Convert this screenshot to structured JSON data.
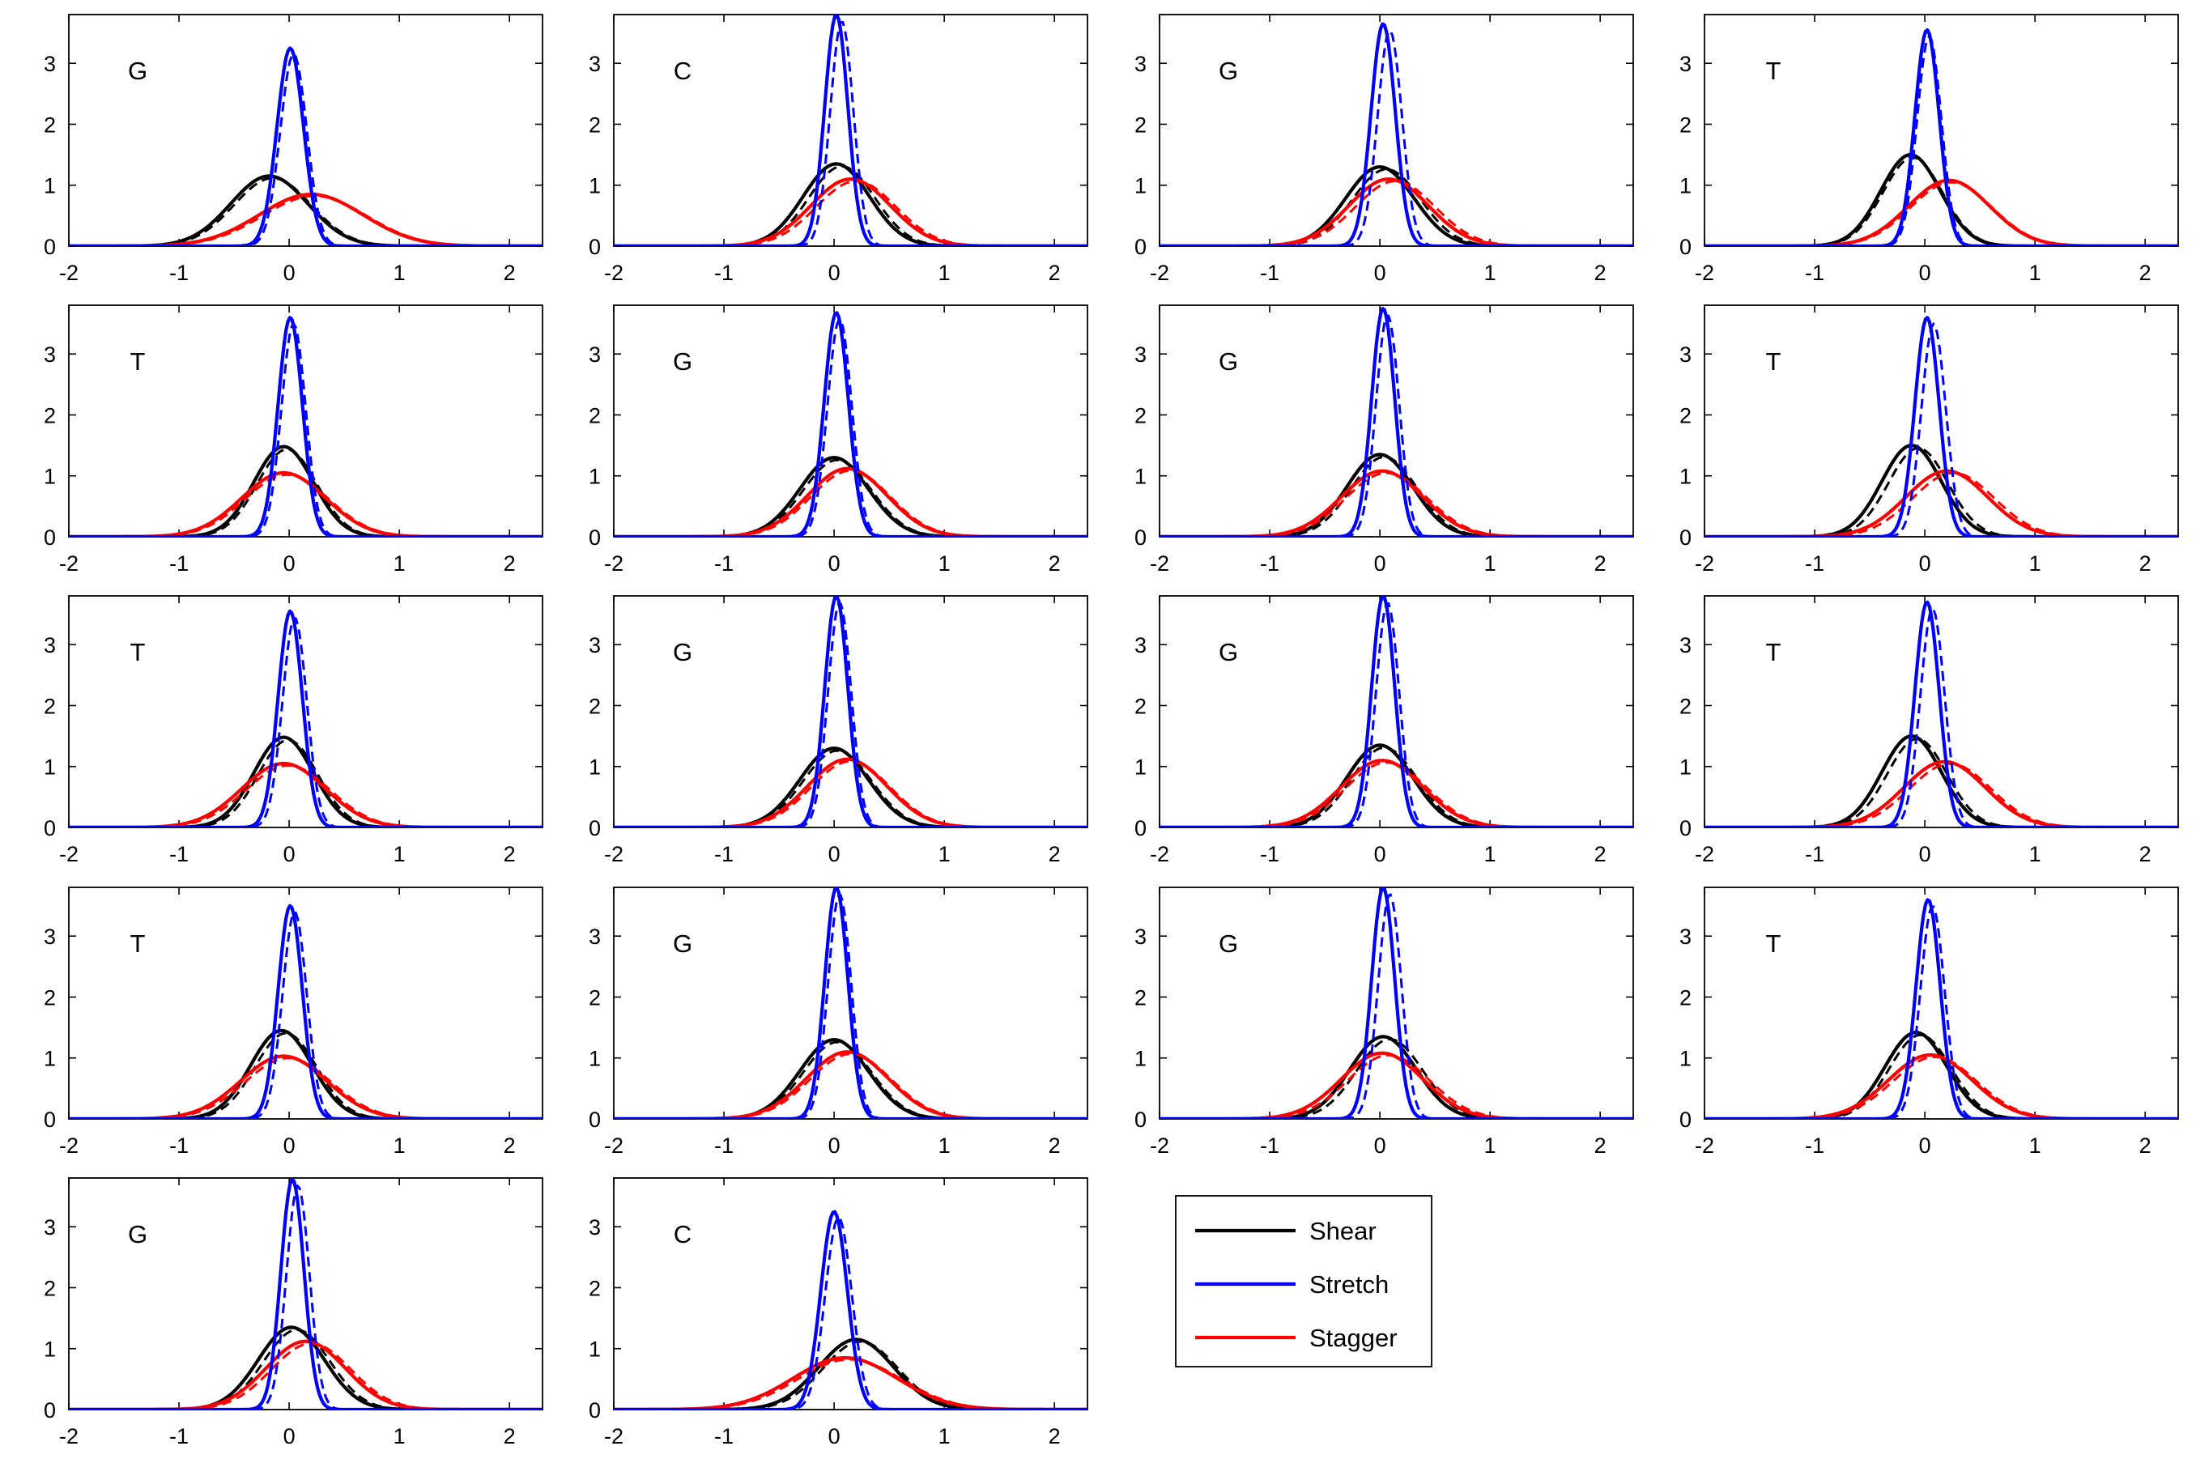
{
  "chart_data": {
    "type": "line",
    "grid": false,
    "xlim": [
      -2,
      2.3
    ],
    "ylim": [
      0,
      3.8
    ],
    "xticks": [
      "-2",
      "-1",
      "0",
      "1",
      "2"
    ],
    "yticks": [
      "0",
      "1",
      "2",
      "3"
    ],
    "series_colors": {
      "Shear": "#000000",
      "Stretch": "#0000ff",
      "Stagger": "#ff0000"
    },
    "legend": {
      "placement": "bottom-row, right of last panel",
      "entries": [
        {
          "name": "Shear",
          "color": "#000000"
        },
        {
          "name": "Stretch",
          "color": "#0000ff"
        },
        {
          "name": "Stagger",
          "color": "#ff0000"
        }
      ]
    },
    "panels": [
      {
        "base": "G",
        "shear": {
          "mean": -0.18,
          "peak": 1.15,
          "sd": 0.35
        },
        "stretch": {
          "mean": 0.01,
          "peak": 3.25,
          "sd": 0.12
        },
        "stagger": {
          "mean": 0.2,
          "peak": 0.85,
          "sd": 0.47
        },
        "alt_shift": 0.03
      },
      {
        "base": "C",
        "shear": {
          "mean": 0.02,
          "peak": 1.35,
          "sd": 0.3
        },
        "stretch": {
          "mean": 0.02,
          "peak": 3.8,
          "sd": 0.105
        },
        "stagger": {
          "mean": 0.15,
          "peak": 1.1,
          "sd": 0.36
        },
        "alt_shift": 0.05
      },
      {
        "base": "G",
        "shear": {
          "mean": 0.0,
          "peak": 1.3,
          "sd": 0.31
        },
        "stretch": {
          "mean": 0.03,
          "peak": 3.65,
          "sd": 0.11
        },
        "stagger": {
          "mean": 0.08,
          "peak": 1.1,
          "sd": 0.36
        },
        "alt_shift": 0.06
      },
      {
        "base": "T",
        "shear": {
          "mean": -0.13,
          "peak": 1.5,
          "sd": 0.27
        },
        "stretch": {
          "mean": 0.02,
          "peak": 3.55,
          "sd": 0.11
        },
        "stagger": {
          "mean": 0.22,
          "peak": 1.08,
          "sd": 0.37
        },
        "alt_shift": 0.02
      },
      {
        "base": "T",
        "shear": {
          "mean": -0.05,
          "peak": 1.48,
          "sd": 0.27
        },
        "stretch": {
          "mean": 0.01,
          "peak": 3.6,
          "sd": 0.11
        },
        "stagger": {
          "mean": -0.05,
          "peak": 1.05,
          "sd": 0.38
        },
        "alt_shift": 0.03
      },
      {
        "base": "G",
        "shear": {
          "mean": 0.0,
          "peak": 1.3,
          "sd": 0.31
        },
        "stretch": {
          "mean": 0.02,
          "peak": 3.68,
          "sd": 0.11
        },
        "stagger": {
          "mean": 0.12,
          "peak": 1.12,
          "sd": 0.36
        },
        "alt_shift": 0.03
      },
      {
        "base": "G",
        "shear": {
          "mean": 0.0,
          "peak": 1.35,
          "sd": 0.3
        },
        "stretch": {
          "mean": 0.03,
          "peak": 3.75,
          "sd": 0.105
        },
        "stagger": {
          "mean": 0.02,
          "peak": 1.08,
          "sd": 0.37
        },
        "alt_shift": 0.04
      },
      {
        "base": "T",
        "shear": {
          "mean": -0.12,
          "peak": 1.5,
          "sd": 0.27
        },
        "stretch": {
          "mean": 0.02,
          "peak": 3.6,
          "sd": 0.11
        },
        "stagger": {
          "mean": 0.2,
          "peak": 1.08,
          "sd": 0.37
        },
        "alt_shift": 0.06
      },
      {
        "base": "T",
        "shear": {
          "mean": -0.05,
          "peak": 1.48,
          "sd": 0.27
        },
        "stretch": {
          "mean": 0.01,
          "peak": 3.55,
          "sd": 0.11
        },
        "stagger": {
          "mean": -0.05,
          "peak": 1.05,
          "sd": 0.38
        },
        "alt_shift": 0.04
      },
      {
        "base": "G",
        "shear": {
          "mean": 0.0,
          "peak": 1.3,
          "sd": 0.31
        },
        "stretch": {
          "mean": 0.02,
          "peak": 3.8,
          "sd": 0.105
        },
        "stagger": {
          "mean": 0.12,
          "peak": 1.12,
          "sd": 0.36
        },
        "alt_shift": 0.03
      },
      {
        "base": "G",
        "shear": {
          "mean": 0.0,
          "peak": 1.35,
          "sd": 0.3
        },
        "stretch": {
          "mean": 0.03,
          "peak": 3.8,
          "sd": 0.105
        },
        "stagger": {
          "mean": 0.02,
          "peak": 1.1,
          "sd": 0.37
        },
        "alt_shift": 0.04
      },
      {
        "base": "T",
        "shear": {
          "mean": -0.12,
          "peak": 1.5,
          "sd": 0.27
        },
        "stretch": {
          "mean": 0.02,
          "peak": 3.7,
          "sd": 0.11
        },
        "stagger": {
          "mean": 0.18,
          "peak": 1.08,
          "sd": 0.37
        },
        "alt_shift": 0.05
      },
      {
        "base": "T",
        "shear": {
          "mean": -0.07,
          "peak": 1.45,
          "sd": 0.28
        },
        "stretch": {
          "mean": 0.01,
          "peak": 3.5,
          "sd": 0.11
        },
        "stagger": {
          "mean": -0.05,
          "peak": 1.03,
          "sd": 0.39
        },
        "alt_shift": 0.04
      },
      {
        "base": "G",
        "shear": {
          "mean": 0.0,
          "peak": 1.3,
          "sd": 0.31
        },
        "stretch": {
          "mean": 0.02,
          "peak": 3.8,
          "sd": 0.105
        },
        "stagger": {
          "mean": 0.12,
          "peak": 1.1,
          "sd": 0.37
        },
        "alt_shift": 0.03
      },
      {
        "base": "G",
        "shear": {
          "mean": 0.03,
          "peak": 1.35,
          "sd": 0.3
        },
        "stretch": {
          "mean": 0.03,
          "peak": 3.8,
          "sd": 0.105
        },
        "stagger": {
          "mean": 0.02,
          "peak": 1.08,
          "sd": 0.37
        },
        "alt_shift": 0.06
      },
      {
        "base": "T",
        "shear": {
          "mean": -0.08,
          "peak": 1.42,
          "sd": 0.28
        },
        "stretch": {
          "mean": 0.03,
          "peak": 3.6,
          "sd": 0.11
        },
        "stagger": {
          "mean": 0.05,
          "peak": 1.05,
          "sd": 0.38
        },
        "alt_shift": 0.04
      },
      {
        "base": "G",
        "shear": {
          "mean": 0.02,
          "peak": 1.35,
          "sd": 0.3
        },
        "stretch": {
          "mean": 0.03,
          "peak": 3.78,
          "sd": 0.105
        },
        "stagger": {
          "mean": 0.15,
          "peak": 1.12,
          "sd": 0.36
        },
        "alt_shift": 0.05
      },
      {
        "base": "C",
        "shear": {
          "mean": 0.2,
          "peak": 1.15,
          "sd": 0.34
        },
        "stretch": {
          "mean": 0.0,
          "peak": 3.25,
          "sd": 0.12
        },
        "stagger": {
          "mean": 0.1,
          "peak": 0.85,
          "sd": 0.47
        },
        "alt_shift": 0.04
      }
    ]
  }
}
